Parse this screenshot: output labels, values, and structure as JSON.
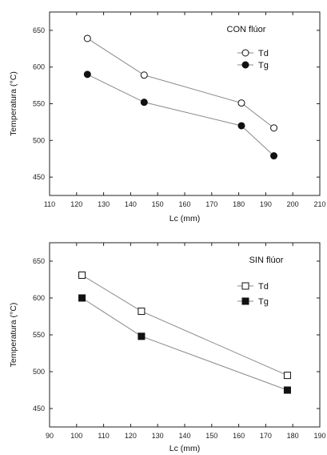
{
  "chart_data": [
    {
      "type": "line",
      "title": "CON flúor",
      "xlabel": "Lc  (mm)",
      "ylabel": "Temperatura (°C)",
      "xlim": [
        110,
        210
      ],
      "ylim": [
        425,
        675
      ],
      "xticks": [
        110,
        120,
        130,
        140,
        150,
        160,
        170,
        180,
        190,
        200,
        210
      ],
      "yticks": [
        450,
        500,
        550,
        600,
        650
      ],
      "grid": false,
      "legend_position": "top-right",
      "series": [
        {
          "name": "Td",
          "marker": "open-circle",
          "x": [
            124,
            145,
            181,
            193
          ],
          "values": [
            639,
            589,
            551,
            517
          ]
        },
        {
          "name": "Tg",
          "marker": "filled-circle",
          "x": [
            124,
            145,
            181,
            193
          ],
          "values": [
            590,
            552,
            520,
            479
          ]
        }
      ]
    },
    {
      "type": "line",
      "title": "SIN flúor",
      "xlabel": "Lc (mm)",
      "ylabel": "Temperatura (°C)",
      "xlim": [
        90,
        190
      ],
      "ylim": [
        425,
        675
      ],
      "xticks": [
        90,
        100,
        110,
        120,
        130,
        140,
        150,
        160,
        170,
        180,
        190
      ],
      "yticks": [
        450,
        500,
        550,
        600,
        650
      ],
      "grid": false,
      "legend_position": "right",
      "series": [
        {
          "name": "Td",
          "marker": "open-square",
          "x": [
            102,
            124,
            178
          ],
          "values": [
            631,
            582,
            495
          ]
        },
        {
          "name": "Tg",
          "marker": "filled-square",
          "x": [
            102,
            124,
            178
          ],
          "values": [
            600,
            548,
            475
          ]
        }
      ]
    }
  ],
  "colors": {
    "line": "#8a8a8a",
    "marker": "#111111",
    "axis": "#222222"
  }
}
